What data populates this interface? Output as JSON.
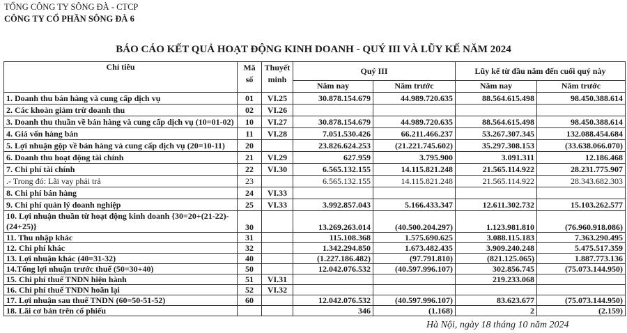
{
  "header": {
    "parent_company": "TỔNG CÔNG TY SÔNG ĐÀ - CTCP",
    "company": "CÔNG TY CỔ PHẦN SÔNG ĐÀ 6",
    "title": "BÁO CÁO KẾT QUẢ HOẠT ĐỘNG KINH DOANH - QUÝ III VÀ LŨY KẾ NĂM 2024"
  },
  "table": {
    "headers": {
      "item": "Chỉ tiêu",
      "code": "Mã số",
      "note": "Thuyết minh",
      "quarter": "Quý III",
      "ytd": "Lũy kế từ đầu năm đến cuối quý này",
      "this_year": "Năm nay",
      "last_year": "Năm trước"
    },
    "rows": [
      {
        "item": "1. Doanh thu bán hàng và cung cấp dịch vụ",
        "code": "01",
        "note": "VI.25",
        "q_this": "30.878.154.679",
        "q_last": "44.989.720.635",
        "y_this": "88.564.615.498",
        "y_last": "98.450.388.614"
      },
      {
        "item": "2. Các khoản giảm trừ doanh thu",
        "code": "02",
        "note": "VI.26",
        "q_this": "",
        "q_last": "",
        "y_this": "",
        "y_last": ""
      },
      {
        "item": "3. Doanh thu thuần về bán hàng và cung cấp dịch vụ (10=01-02)",
        "code": "10",
        "note": "VI.27",
        "q_this": "30.878.154.679",
        "q_last": "44.989.720.635",
        "y_this": "88.564.615.498",
        "y_last": "98.450.388.614"
      },
      {
        "item": "4. Giá vốn hàng bán",
        "code": "11",
        "note": "VI.28",
        "q_this": "7.051.530.426",
        "q_last": "66.211.466.237",
        "y_this": "53.267.307.345",
        "y_last": "132.088.454.684"
      },
      {
        "item": "5. Lợi nhuận gộp về bán hàng và cung cấp dịch vụ (20=10-11)",
        "code": "20",
        "note": "",
        "q_this": "23.826.624.253",
        "q_last": "(21.221.745.602)",
        "y_this": "35.297.308.153",
        "y_last": "(33.638.066.070)"
      },
      {
        "item": "6. Doanh thu hoạt động tài chính",
        "code": "21",
        "note": "VI.29",
        "q_this": "627.959",
        "q_last": "3.795.900",
        "y_this": "3.091.311",
        "y_last": "12.186.468"
      },
      {
        "item": "7. Chi phí tài chính",
        "code": "22",
        "note": "VI.30",
        "q_this": "6.565.132.155",
        "q_last": "14.115.821.248",
        "y_this": "21.565.114.922",
        "y_last": "28.231.775.907"
      },
      {
        "item": ".- Trong đó: Lãi vay phải trả",
        "code": "23",
        "note": "",
        "q_this": "6.565.132.155",
        "q_last": "14.115.821.248",
        "y_this": "21.565.114.922",
        "y_last": "28.343.682.303"
      },
      {
        "item": "8. Chi phí bán hàng",
        "code": "24",
        "note": "VI.33",
        "q_this": "",
        "q_last": "",
        "y_this": "",
        "y_last": ""
      },
      {
        "item": "9. Chi phí quản lý doanh nghiệp",
        "code": "25",
        "note": "VI.33",
        "q_this": "3.992.857.043",
        "q_last": "5.166.433.347",
        "y_this": "12.611.302.732",
        "y_last": "15.103.262.577"
      },
      {
        "item": "10. Lợi nhuận thuần từ hoạt động kinh doanh {30=20+(21-22)-(24+25)}",
        "code": "30",
        "note": "",
        "q_this": "13.269.263.014",
        "q_last": "(40.500.204.297)",
        "y_this": "1.123.981.810",
        "y_last": "(76.960.918.086)"
      },
      {
        "item": "11. Thu nhập khác",
        "code": "31",
        "note": "",
        "q_this": "115.108.368",
        "q_last": "1.575.690.625",
        "y_this": "3.088.115.183",
        "y_last": "7.363.290.495"
      },
      {
        "item": "12. Chi phí khác",
        "code": "32",
        "note": "",
        "q_this": "1.342.294.850",
        "q_last": "1.673.482.435",
        "y_this": "3.909.240.248",
        "y_last": "5.475.517.359"
      },
      {
        "item": "13. Lợi nhuận khác    (40=31-32)",
        "code": "40",
        "note": "",
        "q_this": "(1.227.186.482)",
        "q_last": "(97.791.810)",
        "y_this": "(821.125.065)",
        "y_last": "1.887.773.136"
      },
      {
        "item": "14.Tổng lợi nhuận trước thuế (50=30+40)",
        "code": "50",
        "note": "",
        "q_this": "12.042.076.532",
        "q_last": "(40.597.996.107)",
        "y_this": "302.856.745",
        "y_last": "(75.073.144.950)"
      },
      {
        "item": "15. Chi phí thuế TNDN hiện hành",
        "code": "51",
        "note": "VI.31",
        "q_this": "",
        "q_last": "",
        "y_this": "219.233.068",
        "y_last": ""
      },
      {
        "item": "16. Chi phí thuế TNDN hoãn lại",
        "code": "52",
        "note": "VI.32",
        "q_this": "",
        "q_last": "",
        "y_this": "",
        "y_last": ""
      },
      {
        "item": "17. Lợi nhuận sau thuế TNDN (60=50-51-52)",
        "code": "60",
        "note": "",
        "q_this": "12.042.076.532",
        "q_last": "(40.597.996.107)",
        "y_this": "83.623.677",
        "y_last": "(75.073.144.950)"
      },
      {
        "item": "18. Lãi cơ bản trên cổ phiếu",
        "code": "",
        "note": "",
        "q_this": "346",
        "q_last": "(1.168)",
        "y_this": "2",
        "y_last": "(2.159)"
      }
    ]
  },
  "footer": {
    "date": "Hà Nội, ngày 18 tháng 10 năm 2024"
  }
}
